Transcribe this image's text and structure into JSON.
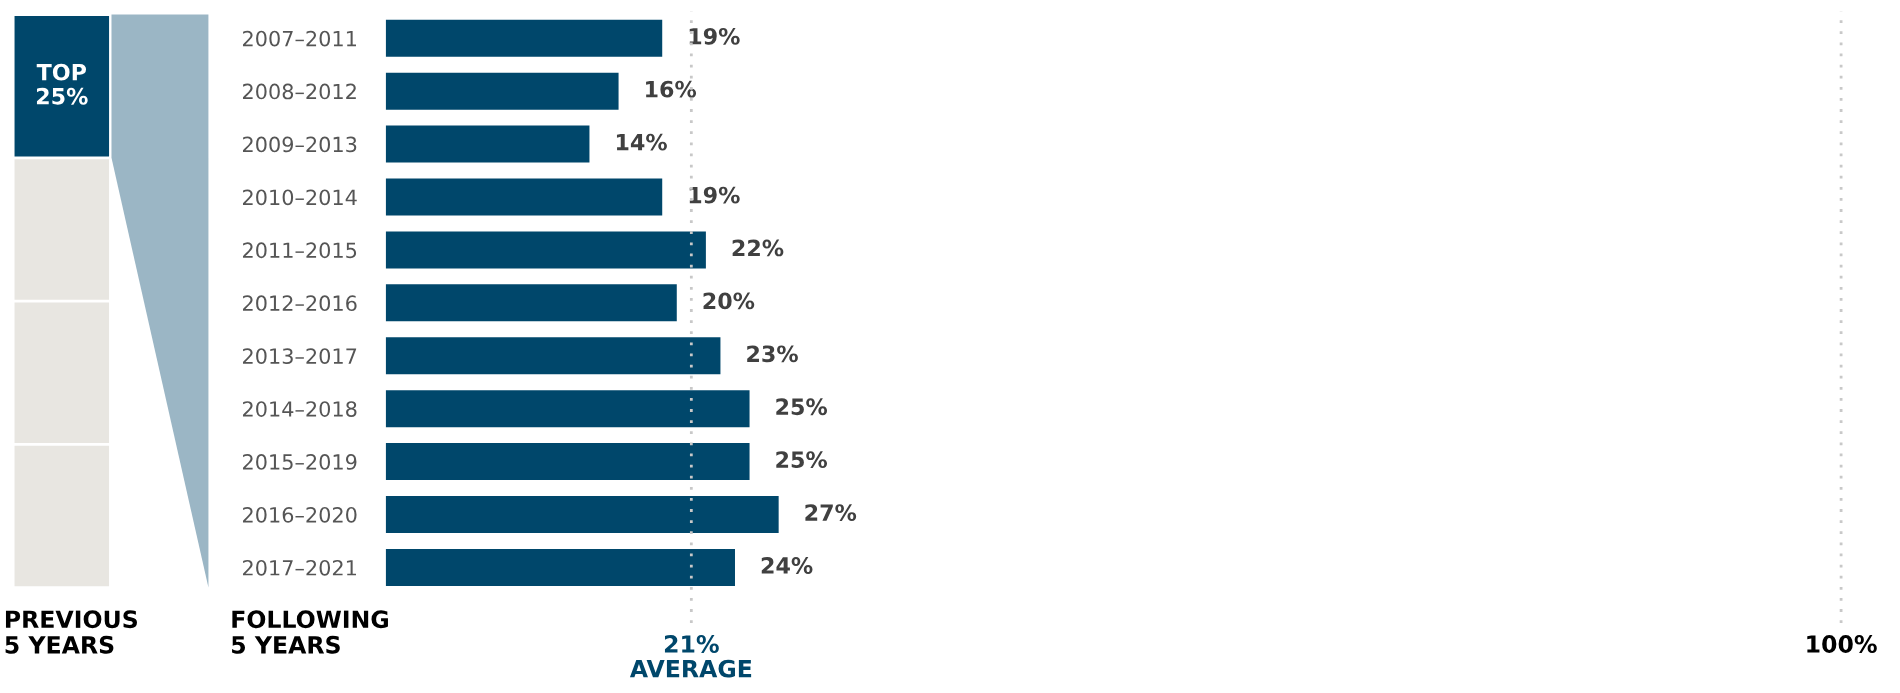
{
  "chart_data": {
    "type": "bar",
    "orientation": "horizontal",
    "categories": [
      "2007–2011",
      "2008–2012",
      "2009–2013",
      "2010–2014",
      "2011–2015",
      "2012–2016",
      "2013–2017",
      "2014–2018",
      "2015–2019",
      "2016–2020",
      "2017–2021"
    ],
    "values": [
      19,
      16,
      14,
      19,
      22,
      20,
      23,
      25,
      25,
      27,
      24
    ],
    "color": "#00476b",
    "value_labels": [
      "19%",
      "16%",
      "14%",
      "19%",
      "22%",
      "20%",
      "23%",
      "25%",
      "25%",
      "27%",
      "24%"
    ],
    "xlim": [
      0,
      100
    ],
    "tick_labels": "y",
    "grid": false,
    "legend": false,
    "ref_lines": [
      {
        "axis": "x",
        "value": 21,
        "label": "21%\nAVERAGE",
        "color": "#c8c8c8",
        "line_style": "dotted"
      },
      {
        "axis": "x",
        "value": 100,
        "label": "100%",
        "color": "#c8c8c8",
        "line_style": "dotted"
      }
    ],
    "annotations": [
      "TOP\n25%",
      "PREVIOUS\n5 YEARS",
      "FOLLOWING\n5 YEARS"
    ]
  }
}
